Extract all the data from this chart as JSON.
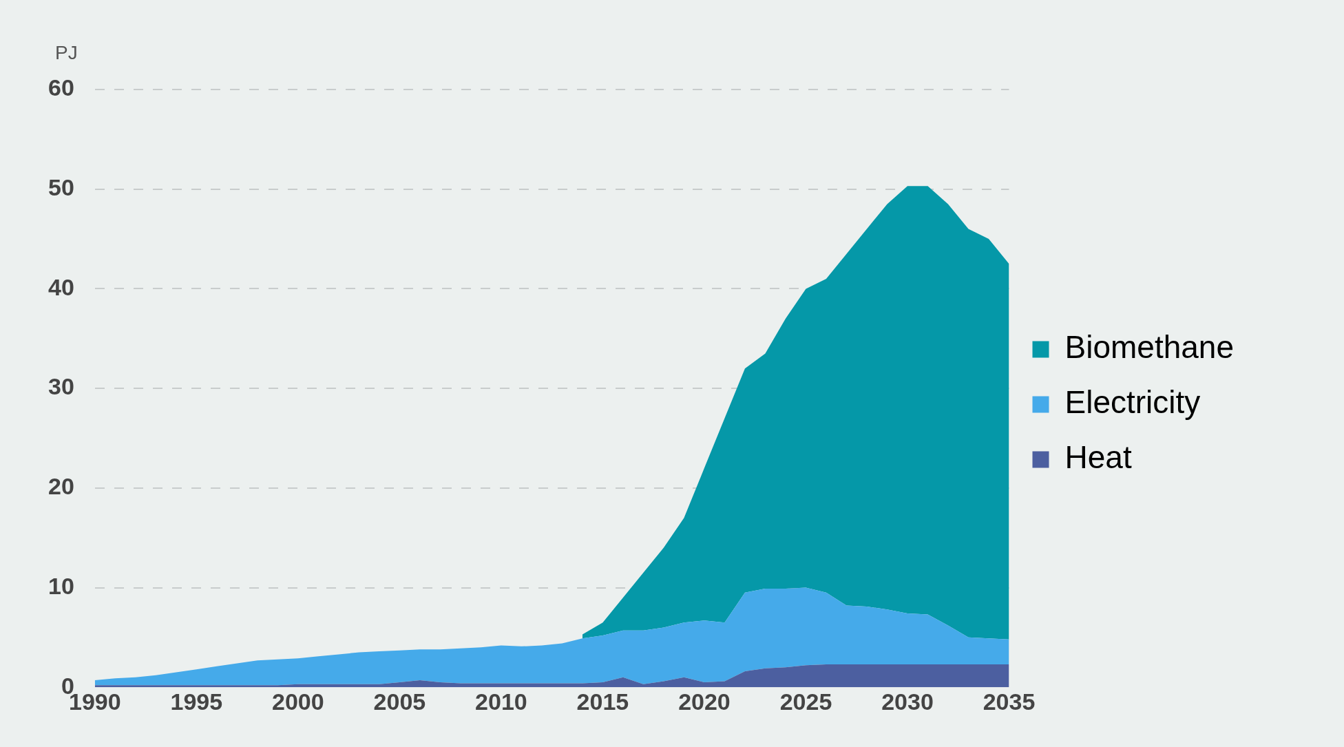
{
  "chart_data": {
    "type": "area",
    "stacked": true,
    "ylabel": "PJ",
    "x": [
      1990,
      1991,
      1992,
      1993,
      1994,
      1995,
      1996,
      1997,
      1998,
      1999,
      2000,
      2001,
      2002,
      2003,
      2004,
      2005,
      2006,
      2007,
      2008,
      2009,
      2010,
      2011,
      2012,
      2013,
      2014,
      2015,
      2016,
      2017,
      2018,
      2019,
      2020,
      2021,
      2022,
      2023,
      2024,
      2025,
      2026,
      2027,
      2028,
      2029,
      2030,
      2031,
      2032,
      2033,
      2034,
      2035
    ],
    "series": [
      {
        "name": "Heat",
        "color": "#4c5fa0",
        "values": [
          0.2,
          0.2,
          0.2,
          0.2,
          0.2,
          0.2,
          0.2,
          0.2,
          0.2,
          0.2,
          0.3,
          0.3,
          0.3,
          0.3,
          0.3,
          0.5,
          0.7,
          0.5,
          0.4,
          0.4,
          0.4,
          0.4,
          0.4,
          0.4,
          0.4,
          0.5,
          1.0,
          0.3,
          0.6,
          1.0,
          0.5,
          0.6,
          1.6,
          1.9,
          2.0,
          2.2,
          2.3,
          2.3,
          2.3,
          2.3,
          2.3,
          2.3,
          2.3,
          2.3,
          2.3,
          2.3
        ]
      },
      {
        "name": "Electricity",
        "color": "#45aaea",
        "values": [
          0.5,
          0.7,
          0.8,
          1.0,
          1.3,
          1.6,
          1.9,
          2.2,
          2.5,
          2.6,
          2.6,
          2.8,
          3.0,
          3.2,
          3.3,
          3.2,
          3.1,
          3.3,
          3.5,
          3.6,
          3.8,
          3.7,
          3.8,
          4.0,
          4.5,
          4.7,
          4.7,
          5.4,
          5.4,
          5.5,
          6.2,
          5.9,
          7.9,
          8.0,
          7.9,
          7.8,
          7.2,
          5.9,
          5.8,
          5.5,
          5.1,
          5.0,
          3.9,
          2.7,
          2.6,
          2.5
        ]
      },
      {
        "name": "Biomethane",
        "color": "#0598a8",
        "values": [
          null,
          null,
          null,
          null,
          null,
          null,
          null,
          null,
          null,
          null,
          null,
          null,
          null,
          null,
          null,
          null,
          null,
          null,
          null,
          null,
          null,
          null,
          null,
          null,
          0.4,
          1.3,
          3.3,
          5.8,
          8.0,
          10.5,
          15.3,
          20.5,
          22.5,
          23.6,
          27.1,
          30.0,
          31.5,
          35.3,
          37.9,
          40.7,
          42.9,
          43.0,
          42.3,
          41.0,
          40.1,
          37.7
        ]
      }
    ],
    "xlim": [
      1990,
      2035
    ],
    "xticks": [
      1990,
      1995,
      2000,
      2005,
      2010,
      2015,
      2020,
      2025,
      2030,
      2035
    ],
    "ylim": [
      0,
      60
    ],
    "yticks": [
      0,
      10,
      20,
      30,
      40,
      50,
      60
    ],
    "grid": "y",
    "legend": "right"
  }
}
